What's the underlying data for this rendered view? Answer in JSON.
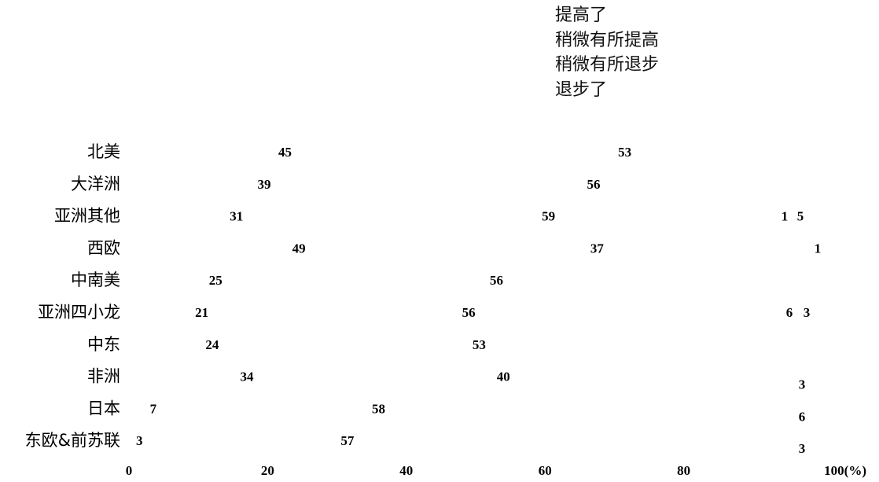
{
  "chart_data": {
    "type": "bar",
    "stacked": true,
    "orientation": "horizontal",
    "categories": [
      "北美",
      "大洋洲",
      "亚洲其他",
      "西欧",
      "中南美",
      "亚洲四小龙",
      "中东",
      "非洲",
      "日本",
      "东欧&前苏联"
    ],
    "series": [
      {
        "name": "提高了",
        "values": [
          45,
          39,
          31,
          49,
          25,
          21,
          24,
          34,
          7,
          3
        ]
      },
      {
        "name": "稍微有所提高",
        "values": [
          53,
          56,
          59,
          37,
          56,
          56,
          53,
          40,
          58,
          57
        ]
      },
      {
        "name": "稍微有所退步",
        "values": [
          null,
          null,
          1,
          1,
          null,
          6,
          null,
          3,
          6,
          3
        ]
      },
      {
        "name": "退步了",
        "values": [
          null,
          null,
          5,
          null,
          null,
          3,
          null,
          null,
          null,
          null
        ]
      }
    ],
    "xlim": [
      0,
      100
    ],
    "xticks": [
      "0",
      "20",
      "40",
      "60",
      "80",
      "100(%)"
    ],
    "legend_position": "top-right",
    "grid": false
  }
}
